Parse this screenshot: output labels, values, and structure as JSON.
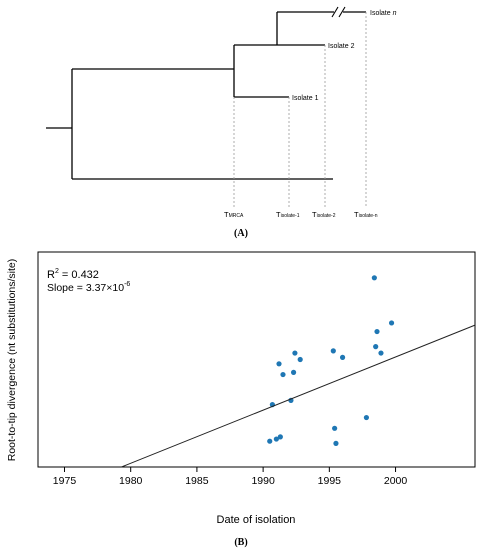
{
  "panel_a": {
    "caption": "(A)",
    "tips": [
      {
        "label_main": "Isolate ",
        "label_italic": "n"
      },
      {
        "label_main": "Isolate 2",
        "label_italic": ""
      },
      {
        "label_main": "Isolate 1",
        "label_italic": ""
      }
    ],
    "time_labels": [
      {
        "main": "T",
        "sub": "MRCA"
      },
      {
        "main": "T",
        "sub": "isolate-1"
      },
      {
        "main": "T",
        "sub": "isolate-2"
      },
      {
        "main": "T",
        "sub": "isolate-n"
      }
    ]
  },
  "panel_b": {
    "caption": "(B)"
  },
  "chart_data": {
    "type": "scatter",
    "title": "",
    "xlabel": "Date of isolation",
    "ylabel": "Root-to-tip divergence (nt substitutions/site)",
    "xlim": [
      1973,
      2006
    ],
    "ylim": [
      0,
      1
    ],
    "xticks": [
      1975,
      1980,
      1985,
      1990,
      1995,
      2000
    ],
    "annotations": {
      "r2_label": "R",
      "r2_sup": "2",
      "r2_value": " = 0.432",
      "slope_label": "Slope = 3.37×10",
      "slope_sup": "-6"
    },
    "points": [
      {
        "x": 1990.5,
        "y": 0.12
      },
      {
        "x": 1990.7,
        "y": 0.29
      },
      {
        "x": 1991.0,
        "y": 0.13
      },
      {
        "x": 1991.2,
        "y": 0.48
      },
      {
        "x": 1991.3,
        "y": 0.14
      },
      {
        "x": 1991.5,
        "y": 0.43
      },
      {
        "x": 1992.1,
        "y": 0.31
      },
      {
        "x": 1992.3,
        "y": 0.44
      },
      {
        "x": 1992.4,
        "y": 0.53
      },
      {
        "x": 1992.8,
        "y": 0.5
      },
      {
        "x": 1995.3,
        "y": 0.54
      },
      {
        "x": 1995.4,
        "y": 0.18
      },
      {
        "x": 1995.5,
        "y": 0.11
      },
      {
        "x": 1996.0,
        "y": 0.51
      },
      {
        "x": 1997.8,
        "y": 0.23
      },
      {
        "x": 1998.4,
        "y": 0.88
      },
      {
        "x": 1998.5,
        "y": 0.56
      },
      {
        "x": 1998.6,
        "y": 0.63
      },
      {
        "x": 1998.9,
        "y": 0.53
      },
      {
        "x": 1999.7,
        "y": 0.67
      }
    ],
    "fit_line": {
      "x": [
        1979.3,
        2006
      ],
      "y": [
        0.0,
        0.66
      ]
    },
    "point_color": "#1f77b4"
  }
}
